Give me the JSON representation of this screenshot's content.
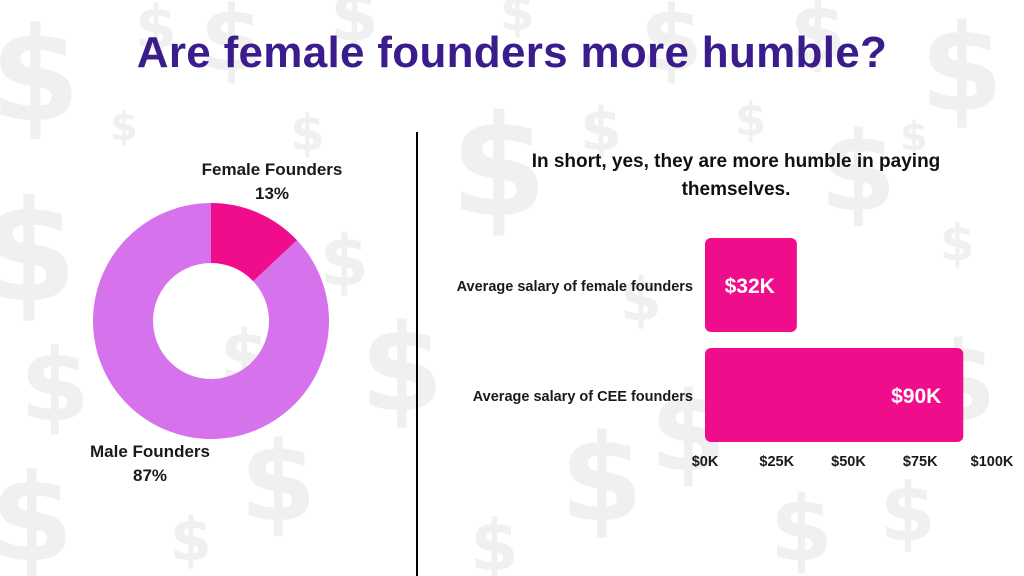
{
  "title": "Are female founders more humble?",
  "subtitle": "In short, yes, they are more humble in paying themselves.",
  "colors": {
    "title": "#3b1c8c",
    "female": "#f00d8b",
    "male": "#d673ec",
    "bar": "#f00d8b",
    "watermark": "#f0f0f0"
  },
  "background_icon": "dollar-sign-icon",
  "chart_data": [
    {
      "type": "pie",
      "style": "donut",
      "categories": [
        "Female Founders",
        "Male Founders"
      ],
      "values": [
        13,
        87
      ],
      "labels": [
        "13%",
        "87%"
      ],
      "title": "",
      "legend": "none"
    },
    {
      "type": "bar",
      "orientation": "horizontal",
      "categories": [
        "Average salary of female founders",
        "Average salary of CEE founders"
      ],
      "values": [
        32,
        90
      ],
      "data_labels": [
        "$32K",
        "$90K"
      ],
      "xlim": [
        0,
        100
      ],
      "xticks": [
        0,
        25,
        50,
        75,
        100
      ],
      "xtick_labels": [
        "$0K",
        "$25K",
        "$50K",
        "$75K",
        "$100K"
      ],
      "title": "",
      "xlabel": "",
      "ylabel": "",
      "grid": false
    }
  ]
}
